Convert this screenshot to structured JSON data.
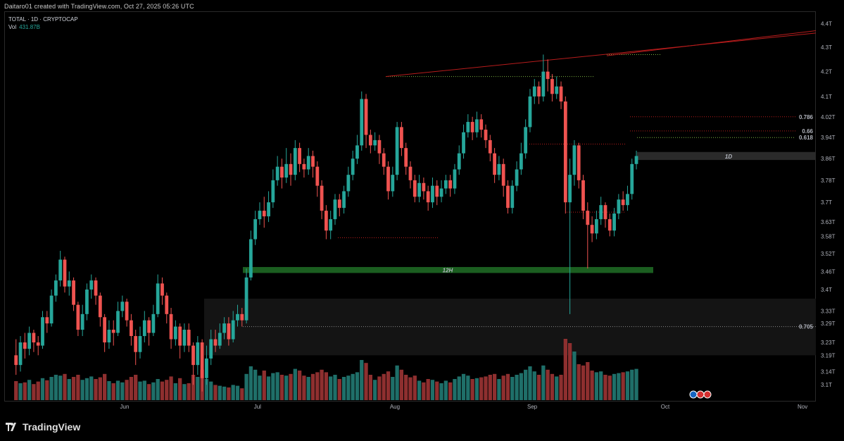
{
  "header": {
    "credit": "Daitaro01 created with TradingView.com, Oct 27, 2025 05:26 UTC"
  },
  "legend": {
    "symbol": "TOTAL · 1D · CRYPTOCAP",
    "vol_label": "Vol",
    "vol_value": "431.87B"
  },
  "branding": {
    "logo_text": "TradingView"
  },
  "colors": {
    "up": "#26a69a",
    "down": "#ef5350",
    "volume_up": "#1f6f69",
    "volume_down": "#8e2f2f",
    "background": "#000000",
    "trendline": "#b71c1c",
    "zone_green": "#1b5e20"
  },
  "chart_data": {
    "type": "candlestick",
    "title": "TOTAL · 1D · CRYPTOCAP",
    "y_axis": {
      "labels": [
        "4.4T",
        "4.3T",
        "4.2T",
        "4.1T",
        "4.02T",
        "3.94T",
        "3.86T",
        "3.78T",
        "3.7T",
        "3.63T",
        "3.58T",
        "3.52T",
        "3.46T",
        "3.4T",
        "3.33T",
        "3.29T",
        "3.23T",
        "3.19T",
        "3.14T",
        "3.1T"
      ],
      "range": [
        3.05,
        4.45
      ],
      "scale": "log"
    },
    "x_axis": {
      "labels": [
        "Jun",
        "Jul",
        "Aug",
        "Sep",
        "Oct",
        "Nov"
      ],
      "start_date": "2025-05-05",
      "end_date": "2025-11-04"
    },
    "fib_levels": [
      {
        "label": "0.786",
        "value": 4.02
      },
      {
        "label": "0.66",
        "value": 3.965
      },
      {
        "label": "0.618",
        "value": 3.94
      },
      {
        "label": "0.705",
        "value": 3.28
      }
    ],
    "zones": [
      {
        "label": "1D",
        "from": 3.855,
        "to": 3.885,
        "color": "#2a2a2a"
      },
      {
        "label": "12H",
        "from": 3.455,
        "to": 3.475,
        "color": "#1b5e20"
      }
    ],
    "candles": [
      [
        3.19,
        3.16,
        3.24,
        3.13
      ],
      [
        3.16,
        3.23,
        3.25,
        3.14
      ],
      [
        3.23,
        3.21,
        3.26,
        3.18
      ],
      [
        3.21,
        3.26,
        3.28,
        3.19
      ],
      [
        3.26,
        3.23,
        3.27,
        3.2
      ],
      [
        3.23,
        3.22,
        3.25,
        3.19
      ],
      [
        3.22,
        3.31,
        3.33,
        3.21
      ],
      [
        3.31,
        3.29,
        3.33,
        3.26
      ],
      [
        3.29,
        3.38,
        3.4,
        3.28
      ],
      [
        3.38,
        3.43,
        3.45,
        3.36
      ],
      [
        3.43,
        3.5,
        3.53,
        3.41
      ],
      [
        3.5,
        3.41,
        3.51,
        3.39
      ],
      [
        3.41,
        3.43,
        3.46,
        3.38
      ],
      [
        3.43,
        3.35,
        3.44,
        3.33
      ],
      [
        3.35,
        3.27,
        3.36,
        3.25
      ],
      [
        3.27,
        3.32,
        3.35,
        3.25
      ],
      [
        3.32,
        3.4,
        3.42,
        3.3
      ],
      [
        3.4,
        3.43,
        3.45,
        3.37
      ],
      [
        3.43,
        3.38,
        3.44,
        3.35
      ],
      [
        3.38,
        3.31,
        3.39,
        3.28
      ],
      [
        3.31,
        3.23,
        3.32,
        3.2
      ],
      [
        3.23,
        3.27,
        3.3,
        3.21
      ],
      [
        3.27,
        3.26,
        3.3,
        3.22
      ],
      [
        3.26,
        3.33,
        3.36,
        3.25
      ],
      [
        3.33,
        3.36,
        3.38,
        3.31
      ],
      [
        3.36,
        3.3,
        3.37,
        3.28
      ],
      [
        3.3,
        3.25,
        3.32,
        3.22
      ],
      [
        3.25,
        3.2,
        3.27,
        3.16
      ],
      [
        3.2,
        3.25,
        3.28,
        3.18
      ],
      [
        3.25,
        3.3,
        3.33,
        3.23
      ],
      [
        3.3,
        3.26,
        3.31,
        3.22
      ],
      [
        3.26,
        3.32,
        3.35,
        3.25
      ],
      [
        3.32,
        3.42,
        3.45,
        3.31
      ],
      [
        3.42,
        3.38,
        3.44,
        3.35
      ],
      [
        3.38,
        3.32,
        3.39,
        3.29
      ],
      [
        3.32,
        3.24,
        3.34,
        3.21
      ],
      [
        3.24,
        3.28,
        3.3,
        3.22
      ],
      [
        3.28,
        3.22,
        3.29,
        3.18
      ],
      [
        3.22,
        3.27,
        3.29,
        3.2
      ],
      [
        3.27,
        3.22,
        3.29,
        3.2
      ],
      [
        3.22,
        3.16,
        3.23,
        3.1
      ],
      [
        3.16,
        3.23,
        3.25,
        3.13
      ],
      [
        3.23,
        3.12,
        3.24,
        3.08
      ],
      [
        3.12,
        3.18,
        3.22,
        3.1
      ],
      [
        3.18,
        3.24,
        3.27,
        3.16
      ],
      [
        3.24,
        3.22,
        3.27,
        3.2
      ],
      [
        3.22,
        3.26,
        3.29,
        3.21
      ],
      [
        3.26,
        3.29,
        3.31,
        3.24
      ],
      [
        3.29,
        3.24,
        3.31,
        3.22
      ],
      [
        3.24,
        3.3,
        3.33,
        3.23
      ],
      [
        3.3,
        3.32,
        3.35,
        3.28
      ],
      [
        3.32,
        3.3,
        3.34,
        3.28
      ],
      [
        3.3,
        3.44,
        3.47,
        3.29
      ],
      [
        3.44,
        3.57,
        3.6,
        3.43
      ],
      [
        3.57,
        3.64,
        3.67,
        3.55
      ],
      [
        3.64,
        3.67,
        3.7,
        3.62
      ],
      [
        3.67,
        3.65,
        3.72,
        3.61
      ],
      [
        3.65,
        3.7,
        3.74,
        3.63
      ],
      [
        3.7,
        3.78,
        3.82,
        3.68
      ],
      [
        3.78,
        3.83,
        3.87,
        3.76
      ],
      [
        3.83,
        3.79,
        3.86,
        3.75
      ],
      [
        3.79,
        3.84,
        3.9,
        3.77
      ],
      [
        3.84,
        3.8,
        3.88,
        3.76
      ],
      [
        3.8,
        3.9,
        3.93,
        3.78
      ],
      [
        3.9,
        3.84,
        3.92,
        3.81
      ],
      [
        3.84,
        3.82,
        3.86,
        3.79
      ],
      [
        3.82,
        3.87,
        3.9,
        3.8
      ],
      [
        3.87,
        3.83,
        3.89,
        3.79
      ],
      [
        3.83,
        3.76,
        3.85,
        3.72
      ],
      [
        3.76,
        3.67,
        3.78,
        3.64
      ],
      [
        3.67,
        3.6,
        3.69,
        3.57
      ],
      [
        3.6,
        3.64,
        3.67,
        3.57
      ],
      [
        3.64,
        3.71,
        3.73,
        3.62
      ],
      [
        3.71,
        3.68,
        3.73,
        3.65
      ],
      [
        3.68,
        3.74,
        3.76,
        3.66
      ],
      [
        3.74,
        3.8,
        3.83,
        3.72
      ],
      [
        3.8,
        3.86,
        3.89,
        3.78
      ],
      [
        3.86,
        3.91,
        3.95,
        3.84
      ],
      [
        3.91,
        4.09,
        4.12,
        3.89
      ],
      [
        4.09,
        3.95,
        4.11,
        3.9
      ],
      [
        3.95,
        3.91,
        3.97,
        3.88
      ],
      [
        3.91,
        3.93,
        3.96,
        3.89
      ],
      [
        3.93,
        3.88,
        3.95,
        3.84
      ],
      [
        3.88,
        3.83,
        3.9,
        3.8
      ],
      [
        3.83,
        3.74,
        3.85,
        3.71
      ],
      [
        3.74,
        3.8,
        3.83,
        3.72
      ],
      [
        3.8,
        3.98,
        4.0,
        3.78
      ],
      [
        3.98,
        3.9,
        4.0,
        3.87
      ],
      [
        3.9,
        3.83,
        3.92,
        3.8
      ],
      [
        3.83,
        3.78,
        3.85,
        3.75
      ],
      [
        3.78,
        3.72,
        3.8,
        3.7
      ],
      [
        3.72,
        3.77,
        3.8,
        3.7
      ],
      [
        3.77,
        3.74,
        3.79,
        3.71
      ],
      [
        3.74,
        3.7,
        3.76,
        3.67
      ],
      [
        3.7,
        3.76,
        3.79,
        3.68
      ],
      [
        3.76,
        3.72,
        3.78,
        3.69
      ],
      [
        3.72,
        3.75,
        3.78,
        3.7
      ],
      [
        3.75,
        3.78,
        3.8,
        3.73
      ],
      [
        3.78,
        3.75,
        3.8,
        3.72
      ],
      [
        3.75,
        3.82,
        3.84,
        3.73
      ],
      [
        3.82,
        3.88,
        3.91,
        3.8
      ],
      [
        3.88,
        3.96,
        3.99,
        3.86
      ],
      [
        3.96,
        4.0,
        4.03,
        3.94
      ],
      [
        4.0,
        3.96,
        4.02,
        3.93
      ],
      [
        3.96,
        4.01,
        4.04,
        3.94
      ],
      [
        4.01,
        3.97,
        4.03,
        3.94
      ],
      [
        3.97,
        3.93,
        3.99,
        3.9
      ],
      [
        3.93,
        3.88,
        3.95,
        3.85
      ],
      [
        3.88,
        3.8,
        3.9,
        3.77
      ],
      [
        3.8,
        3.84,
        3.87,
        3.78
      ],
      [
        3.84,
        3.76,
        3.86,
        3.72
      ],
      [
        3.76,
        3.68,
        3.78,
        3.66
      ],
      [
        3.68,
        3.76,
        3.78,
        3.66
      ],
      [
        3.76,
        3.82,
        3.85,
        3.74
      ],
      [
        3.82,
        3.88,
        3.92,
        3.8
      ],
      [
        3.88,
        3.98,
        4.01,
        3.86
      ],
      [
        3.98,
        4.1,
        4.13,
        3.96
      ],
      [
        4.1,
        4.14,
        4.17,
        4.07
      ],
      [
        4.14,
        4.1,
        4.16,
        4.07
      ],
      [
        4.1,
        4.2,
        4.27,
        4.08
      ],
      [
        4.2,
        4.17,
        4.25,
        4.12
      ],
      [
        4.17,
        4.11,
        4.19,
        4.08
      ],
      [
        4.11,
        4.14,
        4.18,
        4.09
      ],
      [
        4.14,
        4.08,
        4.16,
        4.05
      ],
      [
        4.08,
        3.7,
        4.1,
        3.66
      ],
      [
        3.7,
        3.8,
        3.86,
        3.32
      ],
      [
        3.8,
        3.91,
        3.93,
        3.76
      ],
      [
        3.91,
        3.78,
        3.92,
        3.75
      ],
      [
        3.78,
        3.67,
        3.8,
        3.64
      ],
      [
        3.67,
        3.62,
        3.7,
        3.47
      ],
      [
        3.62,
        3.59,
        3.65,
        3.56
      ],
      [
        3.59,
        3.64,
        3.67,
        3.57
      ],
      [
        3.64,
        3.69,
        3.72,
        3.62
      ],
      [
        3.69,
        3.64,
        3.7,
        3.61
      ],
      [
        3.64,
        3.6,
        3.66,
        3.58
      ],
      [
        3.6,
        3.66,
        3.68,
        3.58
      ],
      [
        3.66,
        3.71,
        3.73,
        3.64
      ],
      [
        3.71,
        3.69,
        3.74,
        3.67
      ],
      [
        3.69,
        3.73,
        3.76,
        3.67
      ],
      [
        3.73,
        3.84,
        3.86,
        3.71
      ],
      [
        3.84,
        3.87,
        3.89,
        3.82
      ]
    ],
    "volumes": [
      [
        0.45,
        0
      ],
      [
        0.4,
        1
      ],
      [
        0.42,
        0
      ],
      [
        0.48,
        1
      ],
      [
        0.38,
        0
      ],
      [
        0.44,
        0
      ],
      [
        0.52,
        1
      ],
      [
        0.47,
        0
      ],
      [
        0.55,
        1
      ],
      [
        0.6,
        1
      ],
      [
        0.58,
        1
      ],
      [
        0.62,
        0
      ],
      [
        0.5,
        1
      ],
      [
        0.55,
        0
      ],
      [
        0.6,
        0
      ],
      [
        0.48,
        1
      ],
      [
        0.52,
        1
      ],
      [
        0.56,
        1
      ],
      [
        0.5,
        0
      ],
      [
        0.54,
        0
      ],
      [
        0.62,
        0
      ],
      [
        0.45,
        1
      ],
      [
        0.4,
        0
      ],
      [
        0.46,
        1
      ],
      [
        0.42,
        1
      ],
      [
        0.48,
        0
      ],
      [
        0.55,
        0
      ],
      [
        0.6,
        0
      ],
      [
        0.44,
        1
      ],
      [
        0.46,
        1
      ],
      [
        0.38,
        0
      ],
      [
        0.42,
        1
      ],
      [
        0.5,
        1
      ],
      [
        0.44,
        0
      ],
      [
        0.48,
        0
      ],
      [
        0.56,
        0
      ],
      [
        0.4,
        1
      ],
      [
        0.52,
        0
      ],
      [
        0.38,
        1
      ],
      [
        0.4,
        0
      ],
      [
        0.6,
        0
      ],
      [
        0.55,
        1
      ],
      [
        0.72,
        0
      ],
      [
        0.5,
        1
      ],
      [
        0.44,
        1
      ],
      [
        0.36,
        0
      ],
      [
        0.34,
        1
      ],
      [
        0.32,
        1
      ],
      [
        0.3,
        0
      ],
      [
        0.36,
        1
      ],
      [
        0.34,
        1
      ],
      [
        0.28,
        0
      ],
      [
        0.62,
        1
      ],
      [
        0.8,
        1
      ],
      [
        0.72,
        1
      ],
      [
        0.58,
        1
      ],
      [
        0.7,
        0
      ],
      [
        0.56,
        1
      ],
      [
        0.64,
        1
      ],
      [
        0.66,
        1
      ],
      [
        0.6,
        0
      ],
      [
        0.58,
        1
      ],
      [
        0.62,
        0
      ],
      [
        0.74,
        1
      ],
      [
        0.7,
        0
      ],
      [
        0.58,
        0
      ],
      [
        0.55,
        1
      ],
      [
        0.62,
        0
      ],
      [
        0.66,
        0
      ],
      [
        0.72,
        0
      ],
      [
        0.66,
        0
      ],
      [
        0.56,
        1
      ],
      [
        0.6,
        1
      ],
      [
        0.5,
        0
      ],
      [
        0.55,
        1
      ],
      [
        0.58,
        1
      ],
      [
        0.62,
        1
      ],
      [
        0.66,
        1
      ],
      [
        0.95,
        1
      ],
      [
        0.88,
        0
      ],
      [
        0.6,
        0
      ],
      [
        0.48,
        1
      ],
      [
        0.56,
        0
      ],
      [
        0.62,
        0
      ],
      [
        0.68,
        0
      ],
      [
        0.55,
        1
      ],
      [
        0.82,
        1
      ],
      [
        0.72,
        0
      ],
      [
        0.6,
        0
      ],
      [
        0.54,
        0
      ],
      [
        0.58,
        0
      ],
      [
        0.46,
        1
      ],
      [
        0.42,
        0
      ],
      [
        0.5,
        0
      ],
      [
        0.48,
        1
      ],
      [
        0.44,
        0
      ],
      [
        0.4,
        1
      ],
      [
        0.46,
        1
      ],
      [
        0.42,
        0
      ],
      [
        0.5,
        1
      ],
      [
        0.56,
        1
      ],
      [
        0.62,
        1
      ],
      [
        0.58,
        1
      ],
      [
        0.5,
        0
      ],
      [
        0.52,
        1
      ],
      [
        0.54,
        0
      ],
      [
        0.56,
        0
      ],
      [
        0.6,
        0
      ],
      [
        0.62,
        0
      ],
      [
        0.5,
        1
      ],
      [
        0.58,
        0
      ],
      [
        0.62,
        0
      ],
      [
        0.55,
        1
      ],
      [
        0.6,
        1
      ],
      [
        0.64,
        1
      ],
      [
        0.72,
        1
      ],
      [
        0.8,
        1
      ],
      [
        0.68,
        1
      ],
      [
        0.6,
        0
      ],
      [
        0.82,
        1
      ],
      [
        0.72,
        0
      ],
      [
        0.62,
        0
      ],
      [
        0.56,
        1
      ],
      [
        0.6,
        0
      ],
      [
        1.45,
        0
      ],
      [
        1.35,
        0
      ],
      [
        1.15,
        1
      ],
      [
        0.85,
        0
      ],
      [
        0.82,
        0
      ],
      [
        0.9,
        0
      ],
      [
        0.7,
        0
      ],
      [
        0.66,
        1
      ],
      [
        0.68,
        1
      ],
      [
        0.6,
        0
      ],
      [
        0.58,
        0
      ],
      [
        0.62,
        1
      ],
      [
        0.64,
        1
      ],
      [
        0.66,
        0
      ],
      [
        0.68,
        1
      ],
      [
        0.72,
        1
      ],
      [
        0.74,
        1
      ]
    ]
  }
}
